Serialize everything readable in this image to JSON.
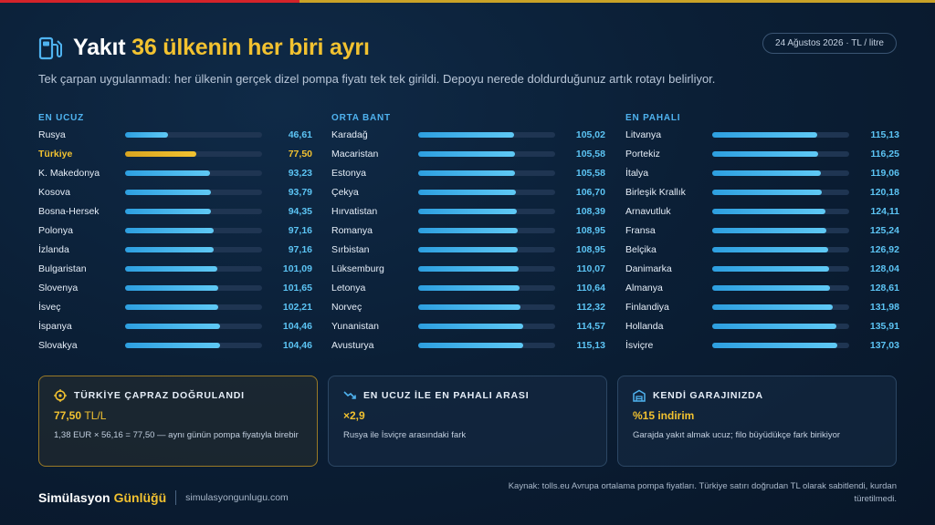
{
  "header": {
    "title_plain": "Yakıt",
    "title_highlight": "36 ülkenin her biri ayrı",
    "subtitle": "Tek çarpan uygulanmadı: her ülkenin gerçek dizel pompa fiyatı tek tek girildi. Depoyu nerede doldurduğunuz artık rotayı belirliyor.",
    "date_badge": "24 Ağustos 2026 · TL / litre"
  },
  "chart_data": {
    "type": "bar",
    "orientation": "horizontal",
    "unit": "TL / litre",
    "xlim": [
      0,
      150
    ],
    "highlight": "Türkiye",
    "groups": [
      {
        "title": "EN UCUZ",
        "categories": [
          "Rusya",
          "Türkiye",
          "K. Makedonya",
          "Kosova",
          "Bosna-Hersek",
          "Polonya",
          "İzlanda",
          "Bulgaristan",
          "Slovenya",
          "İsveç",
          "İspanya",
          "Slovakya"
        ],
        "values": [
          46.61,
          77.5,
          93.23,
          93.79,
          94.35,
          97.16,
          97.16,
          101.09,
          101.65,
          102.21,
          104.46,
          104.46
        ],
        "labels": [
          "46,61",
          "77,50",
          "93,23",
          "93,79",
          "94,35",
          "97,16",
          "97,16",
          "101,09",
          "101,65",
          "102,21",
          "104,46",
          "104,46"
        ]
      },
      {
        "title": "ORTA BANT",
        "categories": [
          "Karadağ",
          "Macaristan",
          "Estonya",
          "Çekya",
          "Hırvatistan",
          "Romanya",
          "Sırbistan",
          "Lüksemburg",
          "Letonya",
          "Norveç",
          "Yunanistan",
          "Avusturya"
        ],
        "values": [
          105.02,
          105.58,
          105.58,
          106.7,
          108.39,
          108.95,
          108.95,
          110.07,
          110.64,
          112.32,
          114.57,
          115.13
        ],
        "labels": [
          "105,02",
          "105,58",
          "105,58",
          "106,70",
          "108,39",
          "108,95",
          "108,95",
          "110,07",
          "110,64",
          "112,32",
          "114,57",
          "115,13"
        ]
      },
      {
        "title": "EN PAHALI",
        "categories": [
          "Litvanya",
          "Portekiz",
          "İtalya",
          "Birleşik Krallık",
          "Arnavutluk",
          "Fransa",
          "Belçika",
          "Danimarka",
          "Almanya",
          "Finlandiya",
          "Hollanda",
          "İsviçre"
        ],
        "values": [
          115.13,
          116.25,
          119.06,
          120.18,
          124.11,
          125.24,
          126.92,
          128.04,
          128.61,
          131.98,
          135.91,
          137.03
        ],
        "labels": [
          "115,13",
          "116,25",
          "119,06",
          "120,18",
          "124,11",
          "125,24",
          "126,92",
          "128,04",
          "128,61",
          "131,98",
          "135,91",
          "137,03"
        ]
      }
    ]
  },
  "cards": [
    {
      "icon": "target-icon",
      "title": "TÜRKİYE ÇAPRAZ DOĞRULANDI",
      "value": "77,50",
      "value_unit": "TL/L",
      "desc": "1,38 EUR × 56,16 = 77,50 — aynı günün pompa fiyatıyla birebir"
    },
    {
      "icon": "trend-down-icon",
      "title": "EN UCUZ İLE EN PAHALI ARASI",
      "value": "×2,9",
      "value_unit": "",
      "desc": "Rusya ile İsviçre arasındaki fark"
    },
    {
      "icon": "garage-icon",
      "title": "KENDİ GARAJINIZDA",
      "value": "%15 indirim",
      "value_unit": "",
      "desc": "Garajda yakıt almak ucuz; filo büyüdükçe fark birikiyor"
    }
  ],
  "footer": {
    "brand_primary": "Simülasyon",
    "brand_accent": "Günlüğü",
    "url": "simulasyongunlugu.com",
    "source": "Kaynak: tolls.eu Avrupa ortalama pompa fiyatları. Türkiye satırı doğrudan TL olarak sabitlendi, kurdan türetilmedi."
  },
  "colors": {
    "accent_gold": "#f2c230",
    "accent_blue": "#4fb3f0",
    "background": "#0b1f36"
  }
}
